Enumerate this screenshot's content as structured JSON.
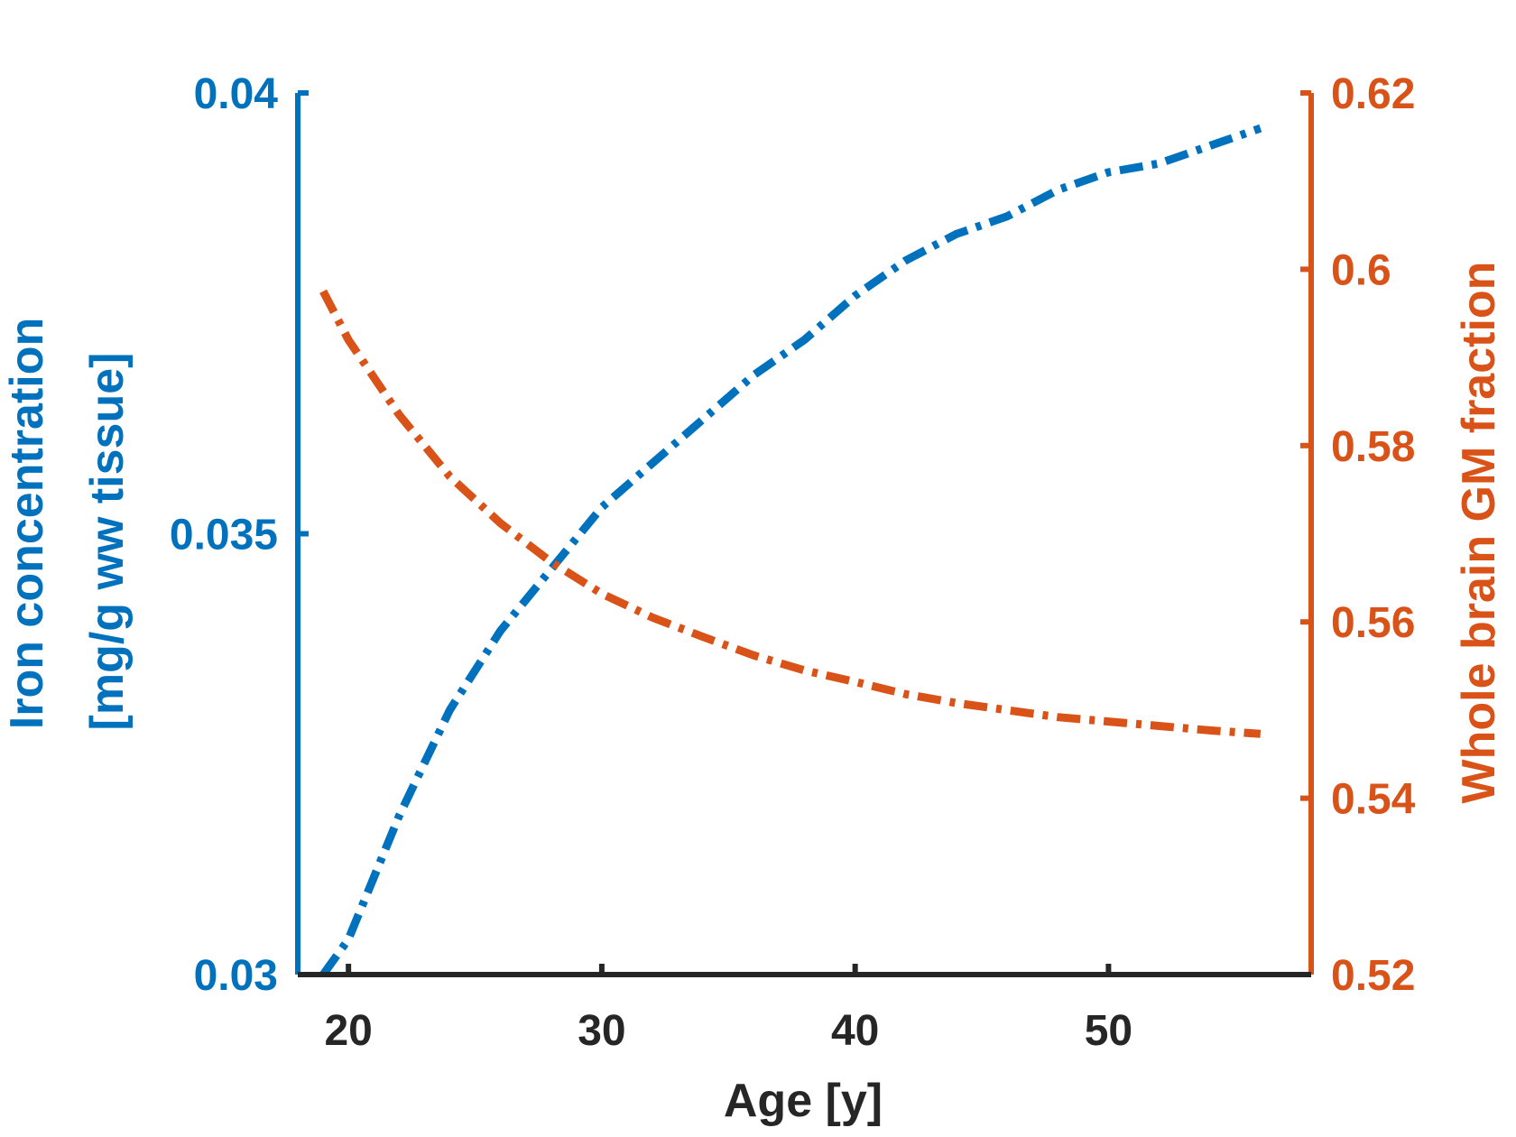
{
  "chart_data": {
    "type": "line",
    "title": "",
    "xlabel": "Age [y]",
    "xlim": [
      18,
      58
    ],
    "xticks": [
      20,
      30,
      40,
      50
    ],
    "y_left": {
      "label_line1": "Iron concentration",
      "label_line2": "[mg/g ww tissue]",
      "lim": [
        0.03,
        0.04
      ],
      "ticks": [
        0.03,
        0.035,
        0.04
      ],
      "tick_labels": [
        "0.03",
        "0.035",
        "0.04"
      ],
      "color": "#0072BD"
    },
    "y_right": {
      "label": "Whole brain GM fraction",
      "lim": [
        0.52,
        0.62
      ],
      "ticks": [
        0.52,
        0.54,
        0.56,
        0.58,
        0.6,
        0.62
      ],
      "tick_labels": [
        "0.52",
        "0.54",
        "0.56",
        "0.58",
        "0.6",
        "0.62"
      ],
      "color": "#D95319"
    },
    "axis_color": "#262626",
    "series": [
      {
        "name": "Iron concentration",
        "axis": "left",
        "color": "#0072BD",
        "style": "dash-dot",
        "x": [
          19,
          20,
          22,
          24,
          26,
          28,
          30,
          32,
          34,
          36,
          38,
          40,
          42,
          44,
          46,
          48,
          50,
          52,
          54,
          56
        ],
        "y": [
          0.03,
          0.0304,
          0.0318,
          0.033,
          0.0339,
          0.0346,
          0.0353,
          0.0358,
          0.0363,
          0.0368,
          0.0372,
          0.0377,
          0.0381,
          0.0384,
          0.0386,
          0.0389,
          0.0391,
          0.0392,
          0.0394,
          0.0396
        ]
      },
      {
        "name": "Whole brain GM fraction",
        "axis": "right",
        "color": "#D95319",
        "style": "dash-dot",
        "x": [
          19,
          20,
          22,
          24,
          26,
          28,
          30,
          32,
          34,
          36,
          38,
          40,
          42,
          44,
          46,
          48,
          50,
          52,
          54,
          56
        ],
        "y": [
          0.5975,
          0.592,
          0.5835,
          0.5765,
          0.5712,
          0.5668,
          0.5632,
          0.5605,
          0.5583,
          0.5562,
          0.5545,
          0.5532,
          0.5518,
          0.5508,
          0.55,
          0.5492,
          0.5487,
          0.5482,
          0.5477,
          0.5473
        ]
      }
    ]
  }
}
